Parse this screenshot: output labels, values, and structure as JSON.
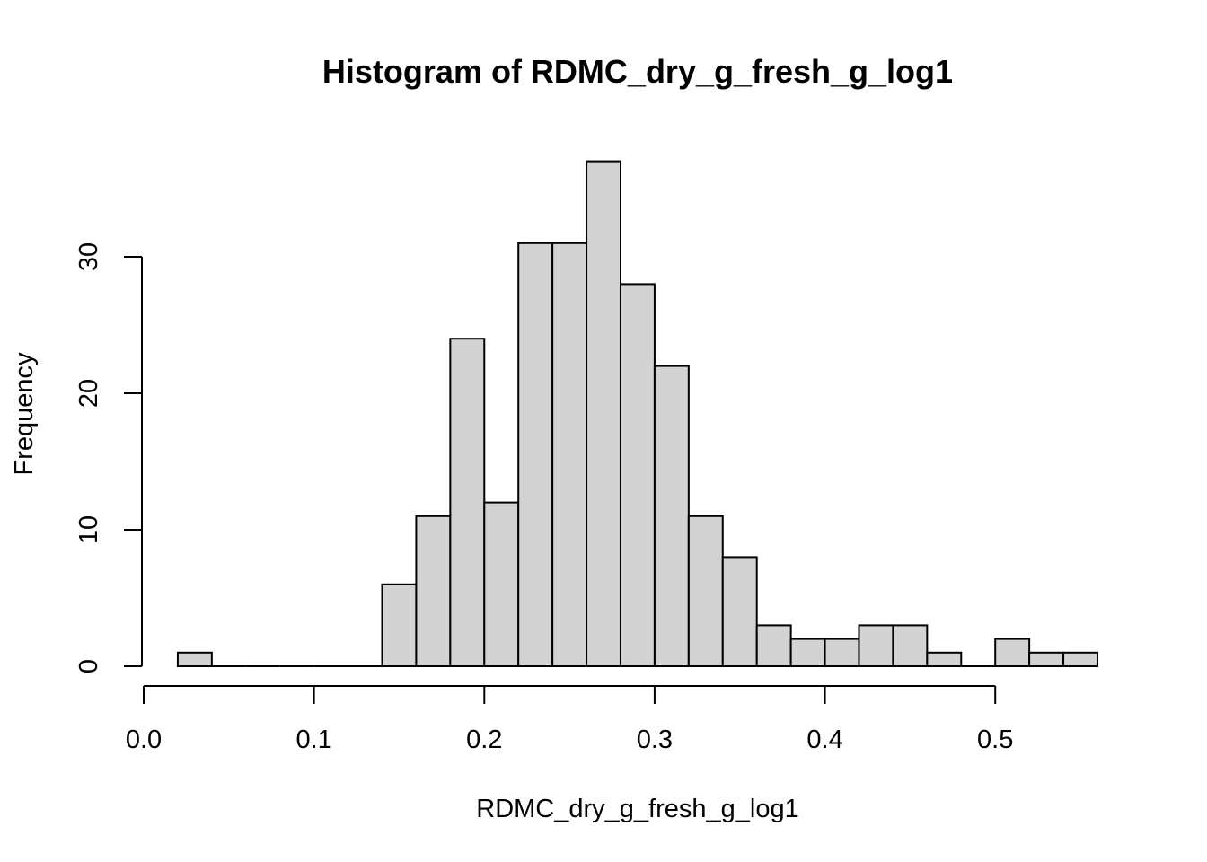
{
  "chart_data": {
    "type": "bar",
    "title": "Histogram of RDMC_dry_g_fresh_g_log1",
    "xlabel": "RDMC_dry_g_fresh_g_log1",
    "ylabel": "Frequency",
    "bin_edges": [
      0.02,
      0.04,
      0.06,
      0.08,
      0.1,
      0.12,
      0.14,
      0.16,
      0.18,
      0.2,
      0.22,
      0.24,
      0.26,
      0.28,
      0.3,
      0.32,
      0.34,
      0.36,
      0.38,
      0.4,
      0.42,
      0.44,
      0.46,
      0.48,
      0.5,
      0.52,
      0.54,
      0.56
    ],
    "counts": [
      1,
      0,
      0,
      0,
      0,
      0,
      6,
      11,
      24,
      12,
      31,
      31,
      37,
      28,
      22,
      11,
      8,
      3,
      2,
      2,
      3,
      3,
      1,
      0,
      2,
      1,
      1
    ],
    "xlim": [
      0.0,
      0.56
    ],
    "ylim": [
      0,
      37
    ],
    "x_ticks": [
      0.0,
      0.1,
      0.2,
      0.3,
      0.4,
      0.5
    ],
    "x_tick_labels": [
      "0.0",
      "0.1",
      "0.2",
      "0.3",
      "0.4",
      "0.5"
    ],
    "y_ticks": [
      0,
      10,
      20,
      30
    ],
    "y_tick_labels": [
      "0",
      "10",
      "20",
      "30"
    ],
    "bar_fill": "#d3d3d3",
    "bar_stroke": "#000000",
    "grid": false,
    "legend": "none"
  }
}
